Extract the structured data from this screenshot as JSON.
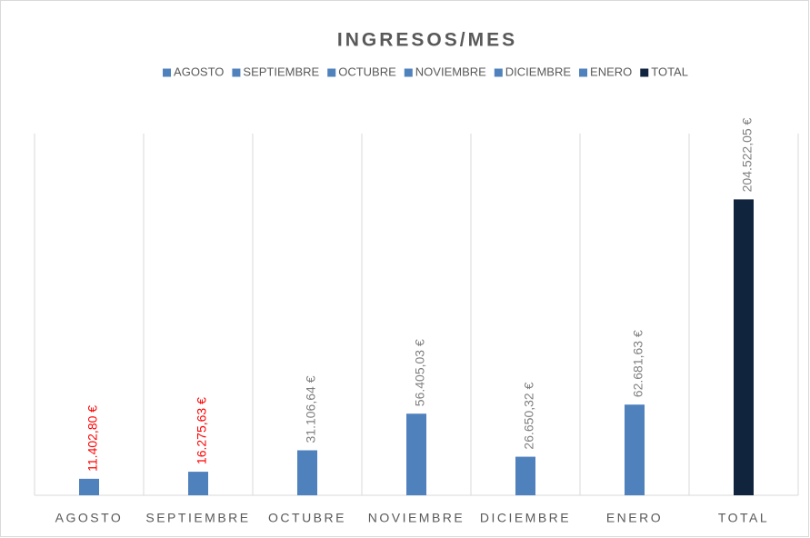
{
  "chart_data": {
    "type": "bar",
    "title": "INGRESOS/MES",
    "categories": [
      "AGOSTO",
      "SEPTIEMBRE",
      "OCTUBRE",
      "NOVIEMBRE",
      "DICIEMBRE",
      "ENERO",
      "TOTAL"
    ],
    "series": [
      {
        "name": "AGOSTO",
        "color": "#4f81bd",
        "label_color": "#ff0000",
        "values": [
          11402.8,
          null,
          null,
          null,
          null,
          null,
          null
        ],
        "value_labels": [
          "11.402,80 €",
          null,
          null,
          null,
          null,
          null,
          null
        ]
      },
      {
        "name": "SEPTIEMBRE",
        "color": "#4f81bd",
        "label_color": "#ff0000",
        "values": [
          null,
          16275.63,
          null,
          null,
          null,
          null,
          null
        ],
        "value_labels": [
          null,
          "16.275,63 €",
          null,
          null,
          null,
          null,
          null
        ]
      },
      {
        "name": "OCTUBRE",
        "color": "#4f81bd",
        "label_color": "#7f7f7f",
        "values": [
          null,
          null,
          31106.64,
          null,
          null,
          null,
          null
        ],
        "value_labels": [
          null,
          null,
          "31.106,64 €",
          null,
          null,
          null,
          null
        ]
      },
      {
        "name": "NOVIEMBRE",
        "color": "#4f81bd",
        "label_color": "#7f7f7f",
        "values": [
          null,
          null,
          null,
          56405.03,
          null,
          null,
          null
        ],
        "value_labels": [
          null,
          null,
          null,
          "56.405,03 €",
          null,
          null,
          null
        ]
      },
      {
        "name": "DICIEMBRE",
        "color": "#4f81bd",
        "label_color": "#7f7f7f",
        "values": [
          null,
          null,
          null,
          null,
          26650.32,
          null,
          null
        ],
        "value_labels": [
          null,
          null,
          null,
          null,
          "26.650,32 €",
          null,
          null
        ]
      },
      {
        "name": "ENERO",
        "color": "#4f81bd",
        "label_color": "#7f7f7f",
        "values": [
          null,
          null,
          null,
          null,
          null,
          62681.63,
          null
        ],
        "value_labels": [
          null,
          null,
          null,
          null,
          null,
          "62.681,63 €",
          null
        ]
      },
      {
        "name": "TOTAL",
        "color": "#10243e",
        "label_color": "#7f7f7f",
        "values": [
          null,
          null,
          null,
          null,
          null,
          null,
          204522.05
        ],
        "value_labels": [
          null,
          null,
          null,
          null,
          null,
          null,
          "204.522,05 €"
        ]
      }
    ],
    "ylim": [
      0,
      250000
    ],
    "legend": "top"
  }
}
